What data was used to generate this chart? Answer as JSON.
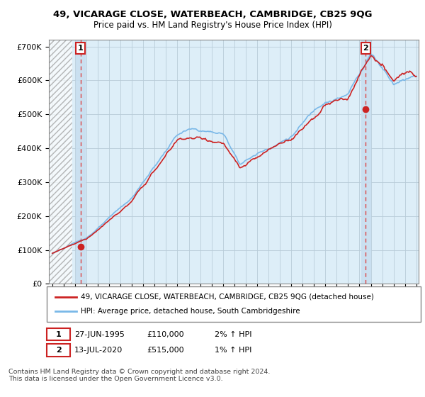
{
  "title_line1": "49, VICARAGE CLOSE, WATERBEACH, CAMBRIDGE, CB25 9QG",
  "title_line2": "Price paid vs. HM Land Registry's House Price Index (HPI)",
  "ylim": [
    0,
    720000
  ],
  "yticks": [
    0,
    100000,
    200000,
    300000,
    400000,
    500000,
    600000,
    700000
  ],
  "hpi_color": "#7ab8e8",
  "price_color": "#cc2222",
  "dot_color": "#cc2222",
  "vline_color": "#dd4444",
  "chart_bg_color": "#ddeef8",
  "hatch_color": "#c8c8c8",
  "background_color": "#ffffff",
  "grid_color": "#b8ccd8",
  "legend_label1": "49, VICARAGE CLOSE, WATERBEACH, CAMBRIDGE, CB25 9QG (detached house)",
  "legend_label2": "HPI: Average price, detached house, South Cambridgeshire",
  "purchase1_date": "27-JUN-1995",
  "purchase1_price": 110000,
  "purchase1_pct": "2% ↑ HPI",
  "purchase1_label": "1",
  "purchase2_date": "13-JUL-2020",
  "purchase2_price": 515000,
  "purchase2_pct": "1% ↑ HPI",
  "purchase2_label": "2",
  "footnote": "Contains HM Land Registry data © Crown copyright and database right 2024.\nThis data is licensed under the Open Government Licence v3.0.",
  "xstart_year": 1993,
  "xend_year": 2025
}
